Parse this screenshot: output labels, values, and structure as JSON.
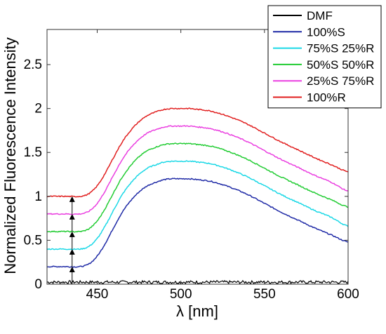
{
  "chart_data": {
    "type": "line",
    "title": "",
    "xlabel": "λ [nm]",
    "ylabel": "Normalized Fluorescence Intensity",
    "xlim": [
      420,
      600
    ],
    "ylim": [
      0,
      2.9
    ],
    "xticks": [
      450,
      500,
      550,
      600
    ],
    "yticks": [
      0,
      0.5,
      1,
      1.5,
      2,
      2.5
    ],
    "xtick_labels": [
      "450",
      "500",
      "550",
      "600"
    ],
    "ytick_labels": [
      "0",
      "0.5",
      "1",
      "1.5",
      "2",
      "2.5"
    ],
    "grid": false,
    "legend_position": "top-right",
    "x": [
      420,
      430,
      440,
      445,
      450,
      455,
      460,
      465,
      470,
      475,
      480,
      485,
      490,
      495,
      500,
      505,
      510,
      515,
      520,
      530,
      540,
      550,
      560,
      570,
      580,
      590,
      600
    ],
    "series": [
      {
        "name": "DMF",
        "color": "#000000",
        "values": [
          0.02,
          0.02,
          0.02,
          0.02,
          0.02,
          0.02,
          0.02,
          0.02,
          0.02,
          0.02,
          0.02,
          0.02,
          0.02,
          0.02,
          0.02,
          0.02,
          0.02,
          0.02,
          0.02,
          0.02,
          0.02,
          0.02,
          0.02,
          0.02,
          0.02,
          0.02,
          0.02
        ]
      },
      {
        "name": "100%S",
        "color": "#1f2aa6",
        "values": [
          0.2,
          0.2,
          0.2,
          0.23,
          0.32,
          0.47,
          0.65,
          0.82,
          0.95,
          1.05,
          1.12,
          1.16,
          1.19,
          1.2,
          1.2,
          1.2,
          1.19,
          1.18,
          1.16,
          1.1,
          1.02,
          0.92,
          0.82,
          0.73,
          0.64,
          0.56,
          0.48
        ]
      },
      {
        "name": "75%S 25%R",
        "color": "#1ad8e6",
        "values": [
          0.4,
          0.4,
          0.4,
          0.43,
          0.52,
          0.67,
          0.85,
          1.02,
          1.15,
          1.25,
          1.32,
          1.36,
          1.39,
          1.4,
          1.4,
          1.4,
          1.39,
          1.38,
          1.36,
          1.3,
          1.22,
          1.12,
          1.02,
          0.93,
          0.84,
          0.76,
          0.66
        ]
      },
      {
        "name": "50%S 50%R",
        "color": "#22cc33",
        "values": [
          0.6,
          0.6,
          0.6,
          0.63,
          0.72,
          0.87,
          1.05,
          1.22,
          1.35,
          1.45,
          1.52,
          1.56,
          1.59,
          1.6,
          1.6,
          1.6,
          1.59,
          1.58,
          1.56,
          1.5,
          1.42,
          1.32,
          1.22,
          1.13,
          1.04,
          0.96,
          0.88
        ]
      },
      {
        "name": "25%S 75%R",
        "color": "#ea3fe0",
        "values": [
          0.8,
          0.8,
          0.8,
          0.83,
          0.92,
          1.07,
          1.25,
          1.42,
          1.55,
          1.65,
          1.72,
          1.76,
          1.79,
          1.8,
          1.8,
          1.8,
          1.79,
          1.78,
          1.76,
          1.7,
          1.62,
          1.52,
          1.42,
          1.33,
          1.24,
          1.16,
          1.06
        ]
      },
      {
        "name": "100%R",
        "color": "#e11f1f",
        "values": [
          1.0,
          1.0,
          1.0,
          1.03,
          1.12,
          1.27,
          1.45,
          1.62,
          1.75,
          1.85,
          1.92,
          1.96,
          1.99,
          2.0,
          2.0,
          2.0,
          1.99,
          1.98,
          1.96,
          1.9,
          1.82,
          1.72,
          1.62,
          1.53,
          1.44,
          1.36,
          1.28
        ]
      }
    ],
    "annotations": {
      "arrows_at_x": 435,
      "arrow_levels": [
        0,
        0.2,
        0.4,
        0.6,
        0.8,
        1.0
      ]
    }
  }
}
